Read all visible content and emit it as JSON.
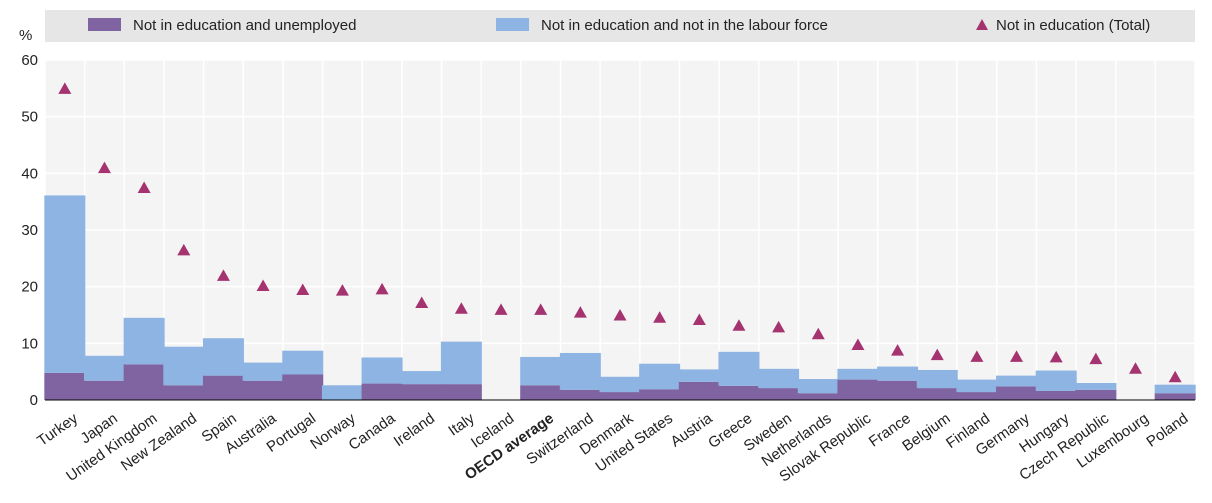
{
  "chart_data": {
    "type": "bar",
    "unit_label": "%",
    "ylim": [
      0,
      60
    ],
    "yticks": [
      0,
      10,
      20,
      30,
      40,
      50,
      60
    ],
    "grid": true,
    "legend_placement": "top",
    "categories": [
      "Turkey",
      "Japan",
      "United Kingdom",
      "New Zealand",
      "Spain",
      "Australia",
      "Portugal",
      "Norway",
      "Canada",
      "Ireland",
      "Italy",
      "Iceland",
      "OECD average",
      "Switzerland",
      "Denmark",
      "United States",
      "Austria",
      "Greece",
      "Sweden",
      "Netherlands",
      "Slovak Republic",
      "France",
      "Belgium",
      "Finland",
      "Germany",
      "Hungary",
      "Czech Republic",
      "Luxembourg",
      "Poland"
    ],
    "highlight_category": "OECD average",
    "series": [
      {
        "name": "Not in education and unemployed",
        "kind": "stacked-bar",
        "color": "#8064A2",
        "values": [
          4.8,
          3.4,
          6.3,
          2.6,
          4.3,
          3.4,
          4.5,
          0,
          2.9,
          2.8,
          2.8,
          0,
          2.6,
          1.8,
          1.4,
          1.9,
          3.2,
          2.5,
          2.1,
          1.2,
          3.6,
          3.4,
          2.1,
          1.4,
          2.4,
          1.6,
          1.8,
          0,
          1.2
        ]
      },
      {
        "name": "Not in education and not in the labour force",
        "kind": "stacked-bar",
        "color": "#8DB4E2",
        "values": [
          31.3,
          4.4,
          8.2,
          6.8,
          6.6,
          3.2,
          4.2,
          2.6,
          4.6,
          2.3,
          7.5,
          0,
          5.0,
          6.5,
          2.7,
          4.5,
          2.2,
          6.0,
          3.4,
          2.5,
          1.9,
          2.5,
          3.2,
          2.2,
          1.9,
          3.6,
          1.2,
          0,
          1.5
        ]
      },
      {
        "name": "Not in education (Total)",
        "kind": "marker",
        "color": "#A5336F",
        "values": [
          55,
          41,
          37.5,
          26.5,
          22,
          20.2,
          19.5,
          19.4,
          19.6,
          17.2,
          16.2,
          16,
          16,
          15.5,
          15,
          14.6,
          14.2,
          13.2,
          12.9,
          11.7,
          9.8,
          8.8,
          8,
          7.7,
          7.7,
          7.6,
          7.3,
          5.6,
          4.1
        ]
      }
    ]
  }
}
